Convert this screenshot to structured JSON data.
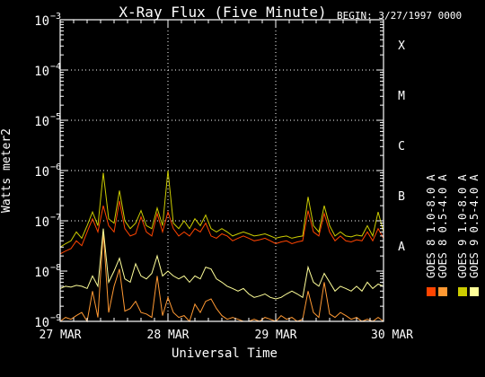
{
  "chart_data": {
    "type": "line",
    "title": "X-Ray Flux (Five Minute)",
    "begin_label": "BEGIN: 3/27/1997 0000",
    "xlabel": "Universal Time",
    "ylabel": "Watts meter2",
    "y_scale": "log",
    "ylim": [
      1e-09,
      0.001
    ],
    "xlim": [
      0,
      3
    ],
    "x_unit": "days since 27 MAR 1997 0000 UT",
    "x_ticks": [
      {
        "x": 0,
        "label": "27 MAR"
      },
      {
        "x": 1,
        "label": "28 MAR"
      },
      {
        "x": 2,
        "label": "29 MAR"
      },
      {
        "x": 3,
        "label": "30 MAR"
      }
    ],
    "y_ticks": [
      {
        "exp": -9,
        "base": "10",
        "sup": "−9"
      },
      {
        "exp": -8,
        "base": "10",
        "sup": "−8"
      },
      {
        "exp": -7,
        "base": "10",
        "sup": "−7"
      },
      {
        "exp": -6,
        "base": "10",
        "sup": "−6"
      },
      {
        "exp": -5,
        "base": "10",
        "sup": "−5"
      },
      {
        "exp": -4,
        "base": "10",
        "sup": "−4"
      },
      {
        "exp": -3,
        "base": "10",
        "sup": "−3"
      }
    ],
    "flare_classes": [
      {
        "label": "A",
        "value": 1e-08
      },
      {
        "label": "B",
        "value": 1e-07
      },
      {
        "label": "C",
        "value": 1e-06
      },
      {
        "label": "M",
        "value": 1e-05
      },
      {
        "label": "X",
        "value": 0.0001
      }
    ],
    "grid": {
      "horizontal_dotted": [
        1e-07,
        1e-06,
        1e-05,
        0.0001
      ],
      "vertical_dotted": [
        1,
        2
      ]
    },
    "legend_position": "right",
    "series": [
      {
        "name": "GOES 8  0.5-4.0 A",
        "color": "#ff9933",
        "x": [
          0,
          0.05,
          0.1,
          0.15,
          0.2,
          0.25,
          0.3,
          0.35,
          0.4,
          0.45,
          0.5,
          0.55,
          0.6,
          0.65,
          0.7,
          0.75,
          0.8,
          0.85,
          0.9,
          0.95,
          1.0,
          1.05,
          1.1,
          1.15,
          1.2,
          1.25,
          1.3,
          1.35,
          1.4,
          1.45,
          1.5,
          1.55,
          1.6,
          1.65,
          1.7,
          1.75,
          1.8,
          1.85,
          1.9,
          1.95,
          2.0,
          2.05,
          2.1,
          2.15,
          2.2,
          2.25,
          2.3,
          2.35,
          2.4,
          2.45,
          2.5,
          2.55,
          2.6,
          2.65,
          2.7,
          2.75,
          2.8,
          2.85,
          2.9,
          2.95,
          3.0
        ],
        "values": [
          1e-09,
          1.2e-09,
          1.1e-09,
          1.3e-09,
          1.5e-09,
          1e-09,
          4e-09,
          1.2e-09,
          6e-08,
          1.5e-09,
          5e-09,
          1.1e-08,
          1.6e-09,
          1.8e-09,
          2.5e-09,
          1.5e-09,
          1.4e-09,
          1.2e-09,
          8e-09,
          1.3e-09,
          3e-09,
          1.5e-09,
          1.2e-09,
          1.3e-09,
          1e-09,
          2.2e-09,
          1.5e-09,
          2.5e-09,
          2.8e-09,
          1.8e-09,
          1.3e-09,
          1.1e-09,
          1.2e-09,
          1.1e-09,
          1e-09,
          1e-09,
          1.1e-09,
          1e-09,
          1.2e-09,
          1.1e-09,
          1e-09,
          1.3e-09,
          1.1e-09,
          1.2e-09,
          1e-09,
          1.1e-09,
          4e-09,
          1.5e-09,
          1.2e-09,
          6e-09,
          1.4e-09,
          1.2e-09,
          1.5e-09,
          1.3e-09,
          1.1e-09,
          1.2e-09,
          1e-09,
          1.1e-09,
          1e-09,
          1.2e-09,
          1e-09
        ]
      },
      {
        "name": "GOES 8  1.0-8.0 A",
        "color": "#ff4400",
        "x": [
          0,
          0.05,
          0.1,
          0.15,
          0.2,
          0.25,
          0.3,
          0.35,
          0.4,
          0.45,
          0.5,
          0.55,
          0.6,
          0.65,
          0.7,
          0.75,
          0.8,
          0.85,
          0.9,
          0.95,
          1.0,
          1.05,
          1.1,
          1.15,
          1.2,
          1.25,
          1.3,
          1.35,
          1.4,
          1.45,
          1.5,
          1.55,
          1.6,
          1.65,
          1.7,
          1.75,
          1.8,
          1.85,
          1.9,
          1.95,
          2.0,
          2.05,
          2.1,
          2.15,
          2.2,
          2.25,
          2.3,
          2.35,
          2.4,
          2.45,
          2.5,
          2.55,
          2.6,
          2.65,
          2.7,
          2.75,
          2.8,
          2.85,
          2.9,
          2.95,
          3.0
        ],
        "values": [
          2.2e-08,
          2.5e-08,
          2.8e-08,
          4e-08,
          3.2e-08,
          6e-08,
          1.1e-07,
          6e-08,
          2e-07,
          8e-08,
          6e-08,
          2.5e-07,
          7e-08,
          5e-08,
          5.5e-08,
          1.2e-07,
          6e-08,
          5e-08,
          1.4e-07,
          6e-08,
          1.5e-07,
          7e-08,
          5e-08,
          6e-08,
          5e-08,
          7e-08,
          6e-08,
          9e-08,
          5e-08,
          4.5e-08,
          5.5e-08,
          5e-08,
          4e-08,
          4.5e-08,
          5e-08,
          4.5e-08,
          4e-08,
          4.2e-08,
          4.5e-08,
          4e-08,
          3.5e-08,
          3.8e-08,
          4e-08,
          3.5e-08,
          3.8e-08,
          4e-08,
          1.6e-07,
          6e-08,
          5e-08,
          1.4e-07,
          6e-08,
          4e-08,
          5e-08,
          4e-08,
          3.8e-08,
          4.2e-08,
          4e-08,
          6e-08,
          4e-08,
          7e-08,
          4.5e-08
        ]
      },
      {
        "name": "GOES 9  0.5-4.0 A",
        "color": "#ffff99",
        "x": [
          0,
          0.05,
          0.1,
          0.15,
          0.2,
          0.25,
          0.3,
          0.35,
          0.4,
          0.45,
          0.5,
          0.55,
          0.6,
          0.65,
          0.7,
          0.75,
          0.8,
          0.85,
          0.9,
          0.95,
          1.0,
          1.05,
          1.1,
          1.15,
          1.2,
          1.25,
          1.3,
          1.35,
          1.4,
          1.45,
          1.5,
          1.55,
          1.6,
          1.65,
          1.7,
          1.75,
          1.8,
          1.85,
          1.9,
          1.95,
          2.0,
          2.05,
          2.1,
          2.15,
          2.2,
          2.25,
          2.3,
          2.35,
          2.4,
          2.45,
          2.5,
          2.55,
          2.6,
          2.65,
          2.7,
          2.75,
          2.8,
          2.85,
          2.9,
          2.95,
          3.0
        ],
        "values": [
          4.5e-09,
          5e-09,
          4.8e-09,
          5.2e-09,
          5e-09,
          4.5e-09,
          8e-09,
          5e-09,
          7e-08,
          6e-09,
          1e-08,
          1.8e-08,
          7e-09,
          6e-09,
          1.4e-08,
          8e-09,
          7e-09,
          9e-09,
          2e-08,
          8e-09,
          1e-08,
          8e-09,
          7e-09,
          8e-09,
          6e-09,
          8e-09,
          7e-09,
          1.2e-08,
          1.1e-08,
          7e-09,
          6e-09,
          5e-09,
          4.5e-09,
          4e-09,
          4.5e-09,
          3.5e-09,
          3e-09,
          3.2e-09,
          3.5e-09,
          3e-09,
          2.8e-09,
          3e-09,
          3.5e-09,
          4e-09,
          3.5e-09,
          3e-09,
          1.2e-08,
          6e-09,
          5e-09,
          9e-09,
          6e-09,
          4e-09,
          5e-09,
          4.5e-09,
          4e-09,
          5e-09,
          4e-09,
          6e-09,
          4.5e-09,
          5.5e-09,
          5e-09
        ]
      },
      {
        "name": "GOES 9  1.0-8.0 A",
        "color": "#cccc00",
        "x": [
          0,
          0.05,
          0.1,
          0.15,
          0.2,
          0.25,
          0.3,
          0.35,
          0.4,
          0.45,
          0.5,
          0.55,
          0.6,
          0.65,
          0.7,
          0.75,
          0.8,
          0.85,
          0.9,
          0.95,
          1.0,
          1.05,
          1.1,
          1.15,
          1.2,
          1.25,
          1.3,
          1.35,
          1.4,
          1.45,
          1.5,
          1.55,
          1.6,
          1.65,
          1.7,
          1.75,
          1.8,
          1.85,
          1.9,
          1.95,
          2.0,
          2.05,
          2.1,
          2.15,
          2.2,
          2.25,
          2.3,
          2.35,
          2.4,
          2.45,
          2.5,
          2.55,
          2.6,
          2.65,
          2.7,
          2.75,
          2.8,
          2.85,
          2.9,
          2.95,
          3.0
        ],
        "values": [
          3e-08,
          3.5e-08,
          4e-08,
          6e-08,
          4.5e-08,
          8e-08,
          1.5e-07,
          8e-08,
          9e-07,
          1.1e-07,
          9e-08,
          4e-07,
          1e-07,
          7e-08,
          9e-08,
          1.6e-07,
          8e-08,
          7e-08,
          1.8e-07,
          8e-08,
          1e-06,
          9e-08,
          7e-08,
          1e-07,
          7e-08,
          1.1e-07,
          8e-08,
          1.3e-07,
          7e-08,
          6e-08,
          7e-08,
          6e-08,
          5e-08,
          5.5e-08,
          6e-08,
          5.5e-08,
          5e-08,
          5.2e-08,
          5.5e-08,
          5e-08,
          4.5e-08,
          4.8e-08,
          5e-08,
          4.5e-08,
          4.8e-08,
          5e-08,
          3e-07,
          8e-08,
          6e-08,
          2e-07,
          8e-08,
          5e-08,
          6e-08,
          5e-08,
          4.8e-08,
          5.2e-08,
          5e-08,
          8e-08,
          5e-08,
          1.5e-07,
          6e-08
        ]
      }
    ],
    "legend": [
      {
        "label": "GOES 8  1.0-8.0 A",
        "color": "#ff4400"
      },
      {
        "label": "GOES 8  0.5-4.0 A",
        "color": "#ff9933"
      },
      {
        "label": "GOES 9  1.0-8.0 A",
        "color": "#cccc00"
      },
      {
        "label": "GOES 9  0.5-4.0 A",
        "color": "#ffff99"
      }
    ]
  }
}
